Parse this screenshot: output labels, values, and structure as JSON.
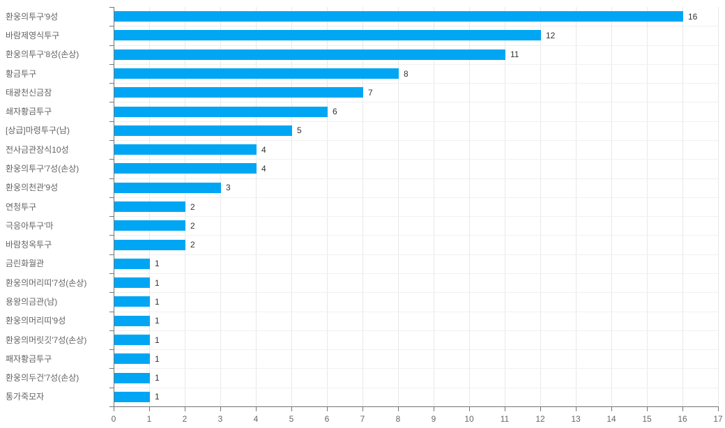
{
  "colors": {
    "bar": "#00a6f4",
    "axis": "#737373",
    "grid_vertical": "#e8e8e8",
    "grid_horizontal": "#f0f0f0",
    "value_label": "#333333",
    "category_label": "#636363",
    "tick_label": "#666666",
    "background": "#ffffff"
  },
  "chart_data": {
    "type": "bar",
    "orientation": "horizontal",
    "categories": [
      "환웅의투구'9성",
      "바람제영식투구",
      "환웅의투구'8성(손상)",
      "황금투구",
      "태광천신금잠",
      "쇄자황금투구",
      "[상급]마령투구(남)",
      "전사금관장식10성",
      "환웅의투구'7성(손상)",
      "환웅의천관'9성",
      "연청투구",
      "극응아투구'마",
      "바람청옥투구",
      "금린화월관",
      "환웅의머리띠'7성(손상)",
      "용왕의금관(남)",
      "환웅의머리띠'9성",
      "환웅의머릿깃'7성(손상)",
      "패자황금투구",
      "환웅의두건'7성(손상)",
      "통가죽모자"
    ],
    "values": [
      16,
      12,
      11,
      8,
      7,
      6,
      5,
      4,
      4,
      3,
      2,
      2,
      2,
      1,
      1,
      1,
      1,
      1,
      1,
      1,
      1
    ],
    "value_labels_shown": true,
    "xlim": [
      0,
      17
    ],
    "x_tick_labels": [
      "0",
      "1",
      "2",
      "3",
      "4",
      "5",
      "6",
      "7",
      "8",
      "9",
      "10",
      "11",
      "12",
      "13",
      "14",
      "15",
      "16",
      "17"
    ],
    "grid": true,
    "legend": false
  }
}
